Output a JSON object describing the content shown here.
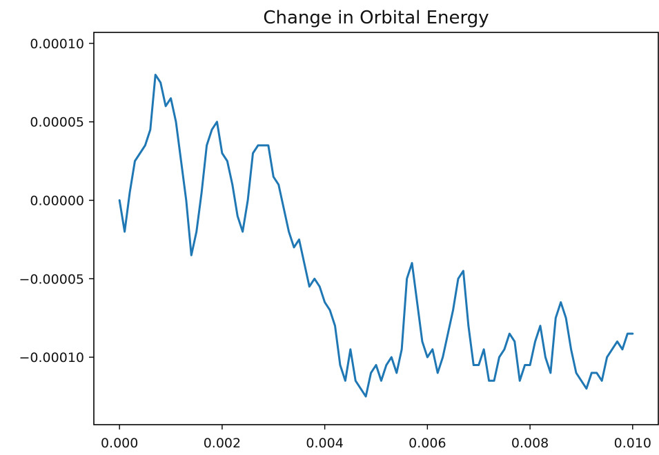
{
  "chart_data": {
    "type": "line",
    "title": "Change in Orbital Energy",
    "xlabel": "",
    "ylabel": "",
    "xlim": [
      -0.0005,
      0.0105
    ],
    "ylim": [
      -0.000143,
      0.000107
    ],
    "xticks": [
      {
        "value": 0.0,
        "label": "0.000"
      },
      {
        "value": 0.002,
        "label": "0.002"
      },
      {
        "value": 0.004,
        "label": "0.004"
      },
      {
        "value": 0.006,
        "label": "0.006"
      },
      {
        "value": 0.008,
        "label": "0.008"
      },
      {
        "value": 0.01,
        "label": "0.010"
      }
    ],
    "yticks": [
      {
        "value": 0.0001,
        "label": "0.00010"
      },
      {
        "value": 5e-05,
        "label": "0.00005"
      },
      {
        "value": 0.0,
        "label": "0.00000"
      },
      {
        "value": -5e-05,
        "label": "−0.00005"
      },
      {
        "value": -0.0001,
        "label": "−0.00010"
      }
    ],
    "grid": false,
    "legend": "none",
    "colors": {
      "series": "#1f77b4",
      "axes": "#000000",
      "background": "#ffffff"
    },
    "series": [
      {
        "x": [
          0.0,
          0.0001,
          0.0002,
          0.0003,
          0.0004,
          0.0005,
          0.0006,
          0.0007,
          0.0008,
          0.0009,
          0.001,
          0.0011,
          0.0012,
          0.0013,
          0.0014,
          0.0015,
          0.0016,
          0.0017,
          0.0018,
          0.0019,
          0.002,
          0.0021,
          0.0022,
          0.0023,
          0.0024,
          0.0025,
          0.0026,
          0.0027,
          0.0028,
          0.0029,
          0.003,
          0.0031,
          0.0032,
          0.0033,
          0.0034,
          0.0035,
          0.0036,
          0.0037,
          0.0038,
          0.0039,
          0.004,
          0.0041,
          0.0042,
          0.0043,
          0.0044,
          0.0045,
          0.0046,
          0.0047,
          0.0048,
          0.0049,
          0.005,
          0.0051,
          0.0052,
          0.0053,
          0.0054,
          0.0055,
          0.0056,
          0.0057,
          0.0058,
          0.0059,
          0.006,
          0.0061,
          0.0062,
          0.0063,
          0.0064,
          0.0065,
          0.0066,
          0.0067,
          0.0068,
          0.0069,
          0.007,
          0.0071,
          0.0072,
          0.0073,
          0.0074,
          0.0075,
          0.0076,
          0.0077,
          0.0078,
          0.0079,
          0.008,
          0.0081,
          0.0082,
          0.0083,
          0.0084,
          0.0085,
          0.0086,
          0.0087,
          0.0088,
          0.0089,
          0.009,
          0.0091,
          0.0092,
          0.0093,
          0.0094,
          0.0095,
          0.0096,
          0.0097,
          0.0098,
          0.0099,
          0.01
        ],
        "y": [
          0.0,
          -2e-05,
          5e-06,
          2.5e-05,
          3e-05,
          3.5e-05,
          4.5e-05,
          8e-05,
          7.5e-05,
          6e-05,
          6.5e-05,
          5e-05,
          2.5e-05,
          0.0,
          -3.5e-05,
          -2e-05,
          5e-06,
          3.5e-05,
          4.5e-05,
          5e-05,
          3e-05,
          2.5e-05,
          1e-05,
          -1e-05,
          -2e-05,
          0.0,
          3e-05,
          3.5e-05,
          3.5e-05,
          3.5e-05,
          1.5e-05,
          1e-05,
          -5e-06,
          -2e-05,
          -3e-05,
          -2.5e-05,
          -4e-05,
          -5.5e-05,
          -5e-05,
          -5.5e-05,
          -6.5e-05,
          -7e-05,
          -8e-05,
          -0.000105,
          -0.000115,
          -9.5e-05,
          -0.000115,
          -0.00012,
          -0.000125,
          -0.00011,
          -0.000105,
          -0.000115,
          -0.000105,
          -0.0001,
          -0.00011,
          -9.5e-05,
          -5e-05,
          -4e-05,
          -6.5e-05,
          -9e-05,
          -0.0001,
          -9.5e-05,
          -0.00011,
          -0.0001,
          -8.5e-05,
          -7e-05,
          -5e-05,
          -4.5e-05,
          -8e-05,
          -0.000105,
          -0.000105,
          -9.5e-05,
          -0.000115,
          -0.000115,
          -0.0001,
          -9.5e-05,
          -8.5e-05,
          -9e-05,
          -0.000115,
          -0.000105,
          -0.000105,
          -9e-05,
          -8e-05,
          -0.0001,
          -0.00011,
          -7.5e-05,
          -6.5e-05,
          -7.5e-05,
          -9.5e-05,
          -0.00011,
          -0.000115,
          -0.00012,
          -0.00011,
          -0.00011,
          -0.000115,
          -0.0001,
          -9.5e-05,
          -9e-05,
          -9.5e-05,
          -8.5e-05,
          -8.5e-05
        ]
      }
    ]
  }
}
